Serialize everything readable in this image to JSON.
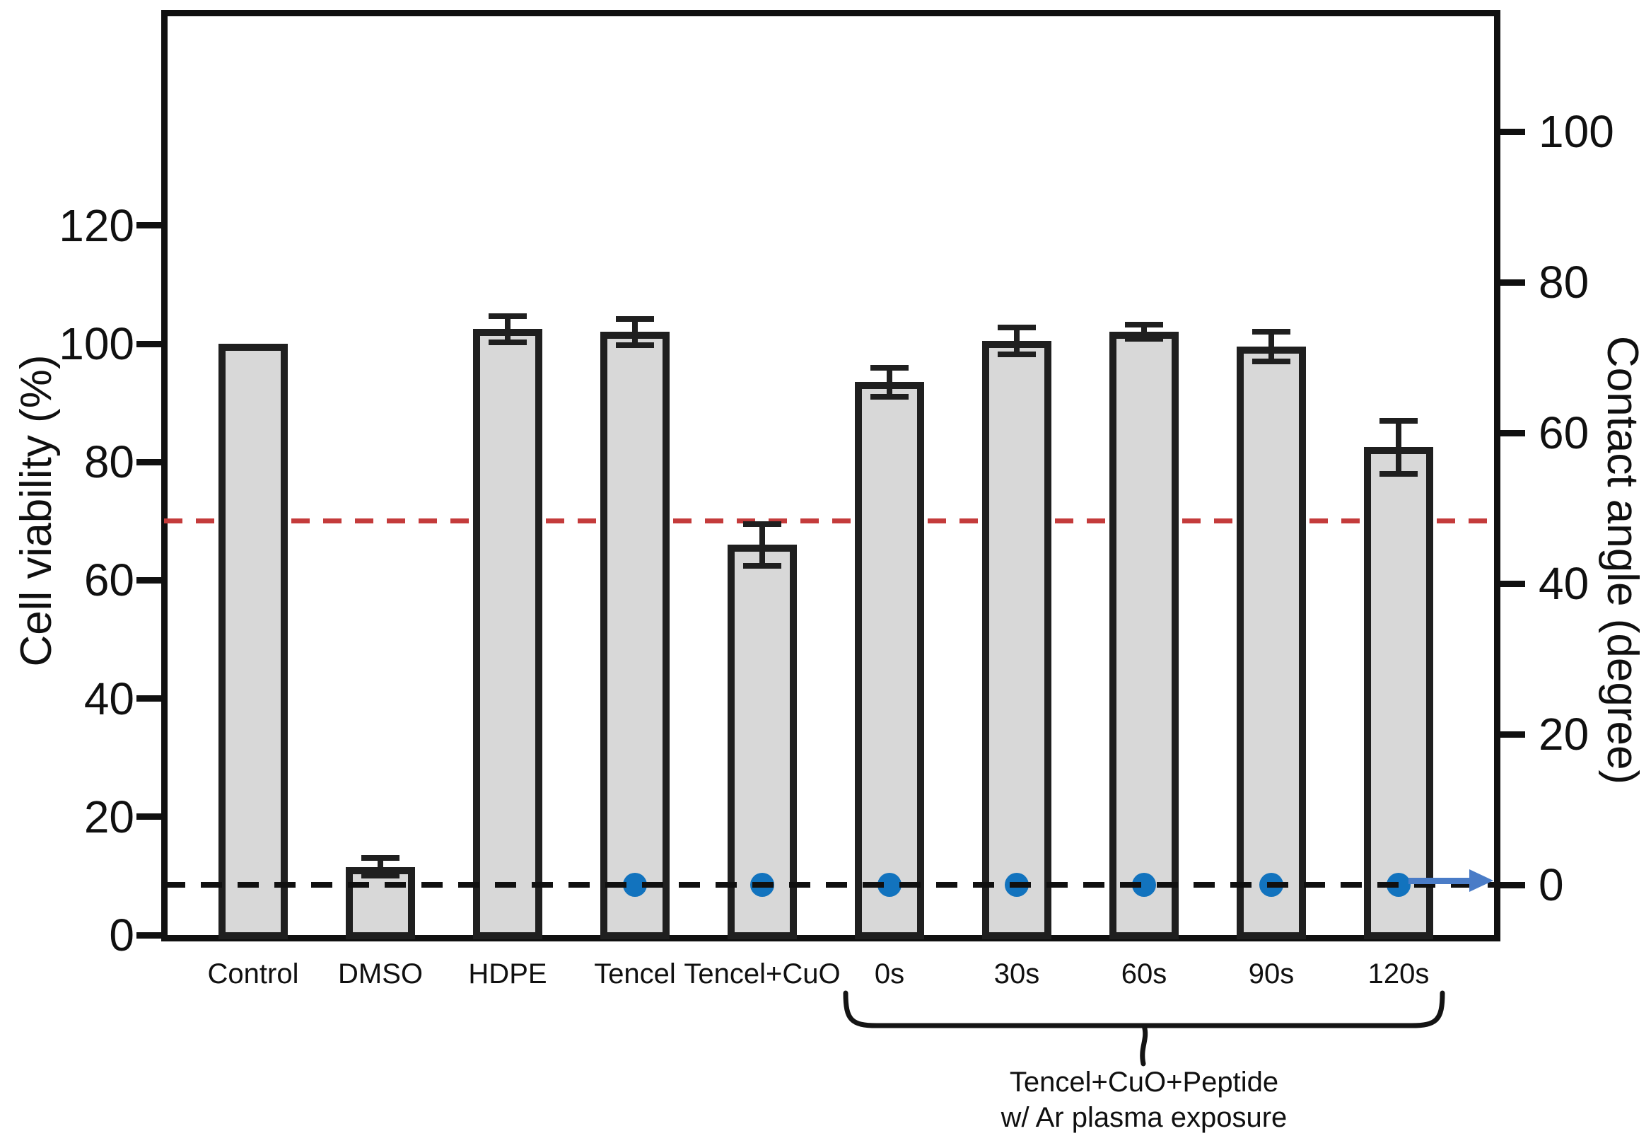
{
  "figure": {
    "kind": "scientific bar chart with secondary scatter axis",
    "background": "#ffffff"
  },
  "chart_data": {
    "type": "bar",
    "categories": [
      "Control",
      "DMSO",
      "HDPE",
      "Tencel",
      "Tencel+CuO",
      "0s",
      "30s",
      "60s",
      "90s",
      "120s"
    ],
    "series": [
      {
        "name": "Cell viability",
        "type": "bar",
        "axis": "left",
        "values": [
          100,
          11.5,
          102.5,
          102,
          66,
          93.5,
          100.5,
          102,
          99.5,
          82.5
        ],
        "errors": [
          0,
          1.5,
          2.2,
          2.2,
          3.5,
          2.5,
          2.3,
          1.2,
          2.5,
          4.5
        ]
      },
      {
        "name": "Contact angle",
        "type": "scatter",
        "axis": "right",
        "values": [
          null,
          null,
          null,
          0,
          0,
          0,
          0,
          0,
          0,
          0
        ]
      }
    ],
    "left_axis": {
      "label": "Cell viability (%)",
      "ticks": [
        0,
        20,
        40,
        60,
        80,
        100,
        120
      ],
      "min": 0,
      "max": 157
    },
    "right_axis": {
      "label": "Contact angle (degree)",
      "ticks": [
        0,
        20,
        40,
        60,
        80,
        100
      ],
      "min": -7,
      "max": 116
    },
    "reference_lines": [
      {
        "axis": "left",
        "value": 70,
        "color": "#c43b3b",
        "style": "dashed"
      },
      {
        "axis": "right",
        "value": 0,
        "color": "#101010",
        "style": "dashed"
      }
    ],
    "grid": false,
    "legend_position": "none"
  },
  "annotations": {
    "bracket": {
      "from": "0s",
      "to": "120s",
      "caption_line1": "Tencel+CuO+Peptide",
      "caption_line2": "w/ Ar plasma exposure"
    },
    "arrow": {
      "direction": "right",
      "at_right_axis_value": 0,
      "color": "#4a7cc7"
    }
  },
  "style": {
    "bar_fill": "#d8d8d8",
    "bar_border": "#1f1f1f",
    "frame_color": "#101010",
    "dot_color": "#1273be",
    "error_color": "#1f1f1f",
    "red_line_color": "#c43b3b",
    "black_line_color": "#101010",
    "text_color": "#101010"
  }
}
